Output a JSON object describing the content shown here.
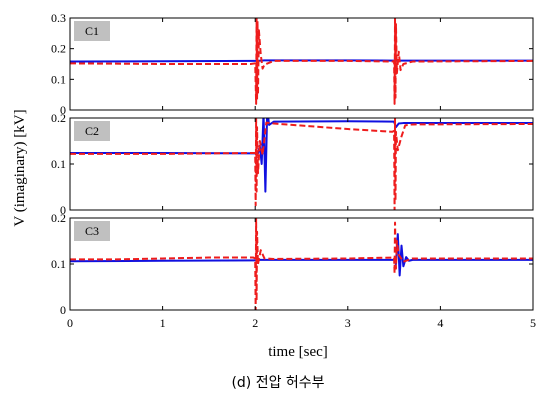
{
  "chart_data": {
    "type": "line",
    "ylabel": "V (imaginary) [kV]",
    "xlabel": "time [sec]",
    "caption": "(d) 전압 허수부",
    "xlim": [
      0,
      5
    ],
    "x_ticks": [
      "0",
      "1",
      "2",
      "3",
      "4",
      "5"
    ],
    "colors": {
      "solid": "#1010e0",
      "dashed": "#ee1c1c",
      "tag_bg": "#c0c0c0"
    },
    "panels": [
      {
        "label": "C1",
        "ylim": [
          0,
          0.3
        ],
        "y_ticks": [
          "0",
          "0.1",
          "0.2",
          "0.3"
        ],
        "series": [
          {
            "style": "solid",
            "color": "#1010e0",
            "points": [
              [
                0,
                0.158
              ],
              [
                1.0,
                0.159
              ],
              [
                2.0,
                0.16
              ],
              [
                2.02,
                0.16
              ],
              [
                2.1,
                0.162
              ],
              [
                3.0,
                0.162
              ],
              [
                3.5,
                0.161
              ],
              [
                3.52,
                0.161
              ],
              [
                4.0,
                0.161
              ],
              [
                5.0,
                0.161
              ]
            ]
          },
          {
            "style": "dashed",
            "color": "#ee1c1c",
            "points": [
              [
                0,
                0.152
              ],
              [
                1.0,
                0.15
              ],
              [
                1.95,
                0.15
              ],
              [
                2.0,
                0.152
              ],
              [
                2.01,
                0.02
              ],
              [
                2.015,
                0.3
              ],
              [
                2.02,
                0.03
              ],
              [
                2.025,
                0.29
              ],
              [
                2.03,
                0.05
              ],
              [
                2.04,
                0.26
              ],
              [
                2.06,
                0.18
              ],
              [
                2.08,
                0.135
              ],
              [
                2.1,
                0.148
              ],
              [
                2.2,
                0.16
              ],
              [
                3.0,
                0.16
              ],
              [
                3.48,
                0.158
              ],
              [
                3.5,
                0.16
              ],
              [
                3.505,
                0.02
              ],
              [
                3.51,
                0.3
              ],
              [
                3.515,
                0.04
              ],
              [
                3.52,
                0.28
              ],
              [
                3.53,
                0.12
              ],
              [
                3.55,
                0.19
              ],
              [
                3.57,
                0.13
              ],
              [
                3.6,
                0.15
              ],
              [
                3.7,
                0.158
              ],
              [
                5.0,
                0.16
              ]
            ]
          }
        ]
      },
      {
        "label": "C2",
        "ylim": [
          0,
          0.2
        ],
        "y_ticks": [
          "0",
          "0.1",
          "0.2"
        ],
        "series": [
          {
            "style": "solid",
            "color": "#1010e0",
            "points": [
              [
                0,
                0.124
              ],
              [
                1.0,
                0.124
              ],
              [
                2.0,
                0.123
              ],
              [
                2.03,
                0.123
              ],
              [
                2.05,
                0.14
              ],
              [
                2.07,
                0.1
              ],
              [
                2.09,
                0.21
              ],
              [
                2.11,
                0.04
              ],
              [
                2.13,
                0.22
              ],
              [
                2.15,
                0.185
              ],
              [
                2.2,
                0.192
              ],
              [
                3.0,
                0.193
              ],
              [
                3.5,
                0.192
              ],
              [
                3.52,
                0.18
              ],
              [
                3.55,
                0.188
              ],
              [
                3.6,
                0.189
              ],
              [
                5.0,
                0.189
              ]
            ]
          },
          {
            "style": "dashed",
            "color": "#ee1c1c",
            "points": [
              [
                0,
                0.122
              ],
              [
                1.0,
                0.122
              ],
              [
                2.0,
                0.124
              ],
              [
                2.005,
                0.01
              ],
              [
                2.01,
                0.2
              ],
              [
                2.015,
                0.04
              ],
              [
                2.02,
                0.18
              ],
              [
                2.03,
                0.08
              ],
              [
                2.05,
                0.15
              ],
              [
                2.08,
                0.12
              ],
              [
                2.12,
                0.19
              ],
              [
                2.2,
                0.188
              ],
              [
                3.0,
                0.176
              ],
              [
                3.48,
                0.17
              ],
              [
                3.5,
                0.172
              ],
              [
                3.505,
                0.0
              ],
              [
                3.51,
                0.2
              ],
              [
                3.515,
                0.02
              ],
              [
                3.52,
                0.17
              ],
              [
                3.54,
                0.13
              ],
              [
                3.58,
                0.16
              ],
              [
                3.62,
                0.184
              ],
              [
                3.7,
                0.186
              ],
              [
                5.0,
                0.187
              ]
            ]
          }
        ]
      },
      {
        "label": "C3",
        "ylim": [
          0,
          0.2
        ],
        "y_ticks": [
          "0",
          "0.1",
          "0.2"
        ],
        "series": [
          {
            "style": "solid",
            "color": "#1010e0",
            "points": [
              [
                0,
                0.106
              ],
              [
                1.0,
                0.107
              ],
              [
                2.0,
                0.108
              ],
              [
                2.05,
                0.109
              ],
              [
                2.1,
                0.109
              ],
              [
                3.0,
                0.109
              ],
              [
                3.5,
                0.109
              ],
              [
                3.52,
                0.1
              ],
              [
                3.54,
                0.165
              ],
              [
                3.56,
                0.075
              ],
              [
                3.58,
                0.14
              ],
              [
                3.6,
                0.095
              ],
              [
                3.63,
                0.115
              ],
              [
                3.66,
                0.107
              ],
              [
                3.7,
                0.109
              ],
              [
                5.0,
                0.109
              ]
            ]
          },
          {
            "style": "dashed",
            "color": "#ee1c1c",
            "points": [
              [
                0,
                0.11
              ],
              [
                0.5,
                0.11
              ],
              [
                1.0,
                0.112
              ],
              [
                1.5,
                0.114
              ],
              [
                1.98,
                0.114
              ],
              [
                2.0,
                0.112
              ],
              [
                2.005,
                0.0
              ],
              [
                2.01,
                0.2
              ],
              [
                2.015,
                0.02
              ],
              [
                2.02,
                0.17
              ],
              [
                2.03,
                0.1
              ],
              [
                2.06,
                0.13
              ],
              [
                2.1,
                0.112
              ],
              [
                2.2,
                0.111
              ],
              [
                3.0,
                0.112
              ],
              [
                3.5,
                0.114
              ],
              [
                3.505,
                0.08
              ],
              [
                3.51,
                0.19
              ],
              [
                3.52,
                0.09
              ],
              [
                3.53,
                0.15
              ],
              [
                3.55,
                0.12
              ],
              [
                3.6,
                0.105
              ],
              [
                3.7,
                0.112
              ],
              [
                5.0,
                0.112
              ]
            ]
          }
        ]
      }
    ]
  }
}
